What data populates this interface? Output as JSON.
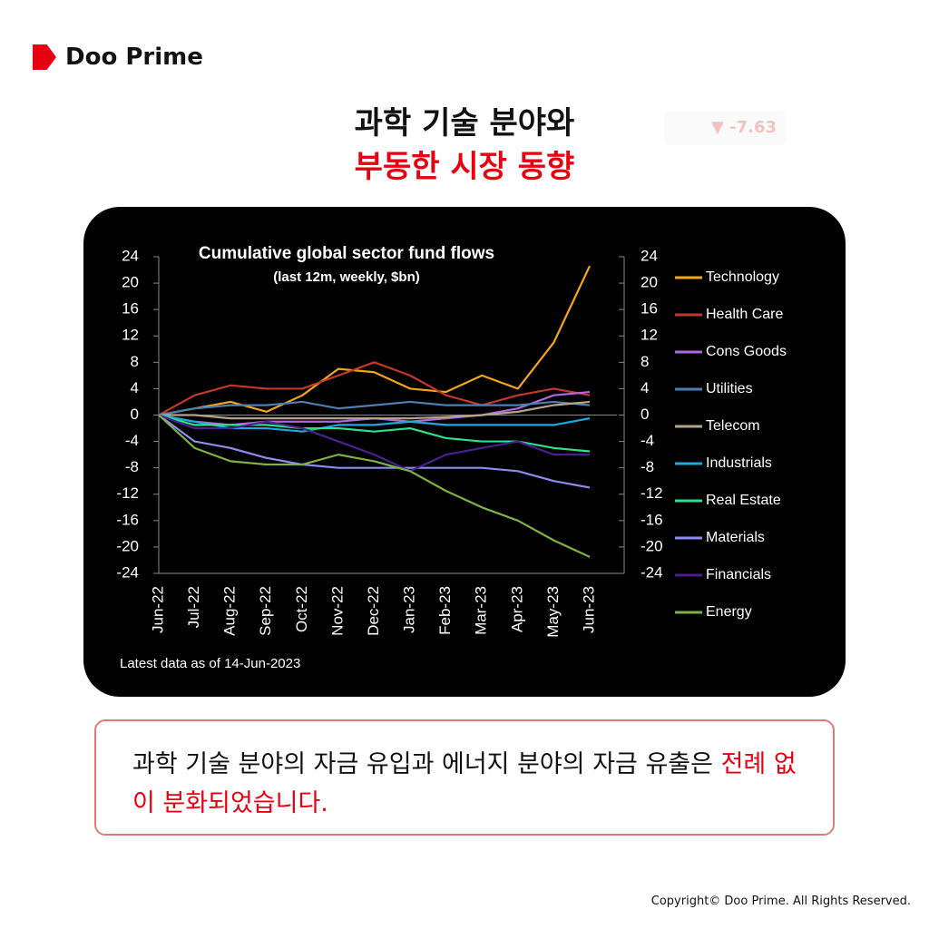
{
  "brand": "Doo Prime",
  "headline": {
    "line1": "과학 기술 분야와",
    "line2": "부동한 시장 동향"
  },
  "background_ticker": "-7.63",
  "chart_data": {
    "type": "line",
    "title": "Cumulative global sector fund flows",
    "subtitle": "(last 12m, weekly, $bn)",
    "footnote": "Latest data as of 14-Jun-2023",
    "categories": [
      "Jun-22",
      "Jul-22",
      "Aug-22",
      "Sep-22",
      "Oct-22",
      "Nov-22",
      "Dec-22",
      "Jan-23",
      "Feb-23",
      "Mar-23",
      "Apr-23",
      "May-23",
      "Jun-23"
    ],
    "ylim": [
      -24,
      24
    ],
    "yticks": [
      24,
      20,
      16,
      12,
      8,
      4,
      0,
      -4,
      -8,
      -12,
      -16,
      -20,
      -24
    ],
    "y2lim": [
      -24,
      24
    ],
    "y2ticks": [
      24,
      20,
      16,
      12,
      8,
      4,
      0,
      -4,
      -8,
      -12,
      -16,
      -20,
      -24
    ],
    "series": [
      {
        "name": "Technology",
        "color": "#f2a71b",
        "values": [
          0,
          1,
          2,
          0.5,
          3,
          7,
          6.5,
          4,
          3.5,
          6,
          4,
          11,
          22.6
        ]
      },
      {
        "name": "Health Care",
        "color": "#c0392b",
        "values": [
          0,
          3,
          4.5,
          4,
          4,
          6,
          8,
          6,
          3,
          1.5,
          3,
          4,
          3
        ]
      },
      {
        "name": "Cons Goods",
        "color": "#b266e0",
        "values": [
          0,
          -1,
          -1.5,
          -1,
          -1,
          -1,
          -0.5,
          -1,
          -0.5,
          0,
          1,
          3,
          3.5
        ]
      },
      {
        "name": "Utilities",
        "color": "#4a7fb0",
        "values": [
          0,
          1,
          1.5,
          1.5,
          2,
          1,
          1.5,
          2,
          1.5,
          1.5,
          1.5,
          2,
          1.5
        ]
      },
      {
        "name": "Telecom",
        "color": "#b5a48a",
        "values": [
          0,
          0,
          -0.5,
          -0.5,
          -0.5,
          -0.5,
          -0.5,
          -0.5,
          -0.3,
          0,
          0.5,
          1.5,
          2
        ]
      },
      {
        "name": "Industrials",
        "color": "#1ea7e0",
        "values": [
          0,
          -1,
          -2,
          -2,
          -2.5,
          -1.5,
          -1.5,
          -1,
          -1.5,
          -1.5,
          -1.5,
          -1.5,
          -0.5
        ]
      },
      {
        "name": "Real Estate",
        "color": "#2ee08a",
        "values": [
          0,
          -1.5,
          -1.5,
          -1.5,
          -2,
          -2,
          -2.5,
          -2,
          -3.5,
          -4,
          -4,
          -5,
          -5.5
        ]
      },
      {
        "name": "Materials",
        "color": "#8c8cf0",
        "values": [
          0,
          -4,
          -5,
          -6.5,
          -7.5,
          -8,
          -8,
          -8,
          -8,
          -8,
          -8.5,
          -10,
          -11
        ]
      },
      {
        "name": "Financials",
        "color": "#4a2090",
        "values": [
          0,
          -2,
          -2,
          -1,
          -2,
          -4,
          -6,
          -8.5,
          -6,
          -5,
          -4,
          -6,
          -6
        ]
      },
      {
        "name": "Energy",
        "color": "#7cb342",
        "values": [
          0,
          -5,
          -7,
          -7.5,
          -7.5,
          -6,
          -7,
          -8.5,
          -11.5,
          -14,
          -16,
          -19,
          -21.5
        ]
      }
    ]
  },
  "caption": {
    "text": "과학 기술 분야의 자금 유입과 에너지 분야의 자금 유출은 ",
    "highlight": "전례 없이 분화되었습니다."
  },
  "copyright": "Copyright© Doo Prime. All Rights Reserved."
}
